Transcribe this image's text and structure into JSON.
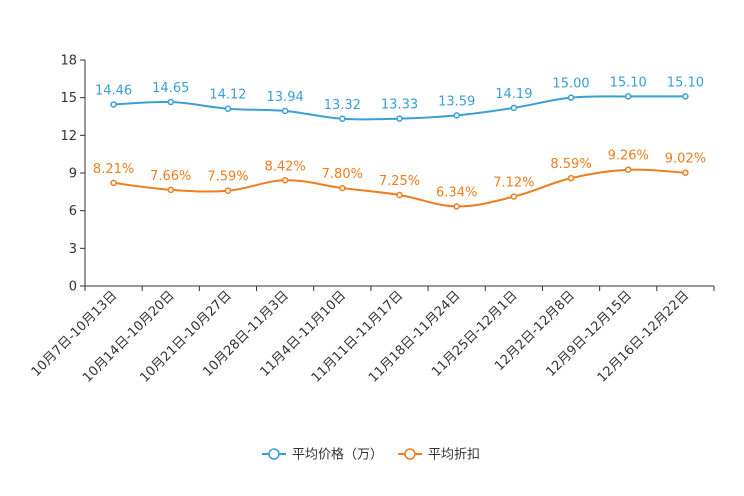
{
  "chart_data": {
    "type": "line",
    "title": "",
    "xlabel": "",
    "ylabel": "",
    "ylim": [
      0,
      18
    ],
    "yticks": [
      0,
      3,
      6,
      9,
      12,
      15,
      18
    ],
    "grid": false,
    "legend_position": "bottom-center",
    "categories": [
      "10月7日-10月13日",
      "10月14日-10月20日",
      "10月21日-10月27日",
      "10月28日-11月3日",
      "11月4日-11月10日",
      "11月11日-11月17日",
      "11月18日-11月24日",
      "11月25日-12月1日",
      "12月2日-12月8日",
      "12月9日-12月15日",
      "12月16日-12月22日"
    ],
    "series": [
      {
        "name": "平均价格（万）",
        "color": "#3a9fd6",
        "values": [
          14.46,
          14.65,
          14.12,
          13.94,
          13.32,
          13.33,
          13.59,
          14.19,
          15.0,
          15.1,
          15.1
        ],
        "labels": [
          "14.46",
          "14.65",
          "14.12",
          "13.94",
          "13.32",
          "13.33",
          "13.59",
          "14.19",
          "15.00",
          "15.10",
          "15.10"
        ]
      },
      {
        "name": "平均折扣",
        "color": "#f07d1d",
        "values": [
          8.21,
          7.66,
          7.59,
          8.42,
          7.8,
          7.25,
          6.34,
          7.12,
          8.59,
          9.26,
          9.02
        ],
        "labels": [
          "8.21%",
          "7.66%",
          "7.59%",
          "8.42%",
          "7.80%",
          "7.25%",
          "6.34%",
          "7.12%",
          "8.59%",
          "9.26%",
          "9.02%"
        ]
      }
    ]
  }
}
